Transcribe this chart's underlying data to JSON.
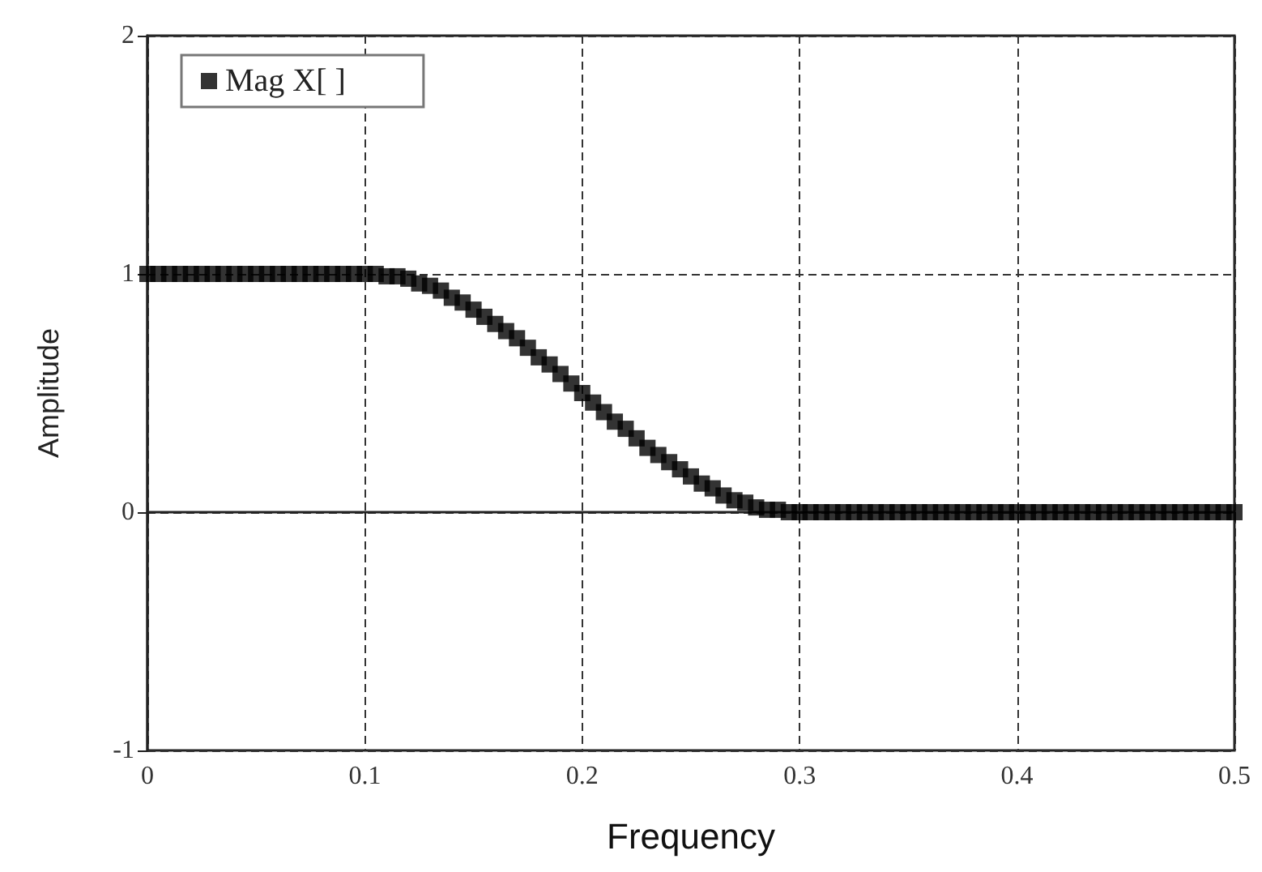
{
  "chart_data": {
    "type": "scatter",
    "xlabel": "Frequency",
    "ylabel": "Amplitude",
    "xlim": [
      0,
      0.5
    ],
    "xticks": [
      0,
      0.1,
      0.2,
      0.3,
      0.4,
      0.5
    ],
    "ylim": [
      -1,
      2
    ],
    "yticks": [
      -1,
      0,
      1,
      2
    ],
    "grid": true,
    "legend": "top left",
    "marker": "square",
    "x": [
      0,
      0.005,
      0.01,
      0.015,
      0.02,
      0.025,
      0.03,
      0.035,
      0.04,
      0.045,
      0.05,
      0.055,
      0.06,
      0.065,
      0.07,
      0.075,
      0.08,
      0.085,
      0.09,
      0.095,
      0.1,
      0.105,
      0.11,
      0.115,
      0.12,
      0.125,
      0.13,
      0.135,
      0.14,
      0.145,
      0.15,
      0.155,
      0.16,
      0.165,
      0.17,
      0.175,
      0.18,
      0.185,
      0.19,
      0.195,
      0.2,
      0.205,
      0.21,
      0.215,
      0.22,
      0.225,
      0.23,
      0.235,
      0.24,
      0.245,
      0.25,
      0.255,
      0.26,
      0.265,
      0.27,
      0.275,
      0.28,
      0.285,
      0.29,
      0.295,
      0.3,
      0.305,
      0.31,
      0.315,
      0.32,
      0.325,
      0.33,
      0.335,
      0.34,
      0.345,
      0.35,
      0.355,
      0.36,
      0.365,
      0.37,
      0.375,
      0.38,
      0.385,
      0.39,
      0.395,
      0.4,
      0.405,
      0.41,
      0.415,
      0.42,
      0.425,
      0.43,
      0.435,
      0.44,
      0.445,
      0.45,
      0.455,
      0.46,
      0.465,
      0.47,
      0.475,
      0.48,
      0.485,
      0.49,
      0.495,
      0.5
    ],
    "series": [
      {
        "name": "Mag X[ ]",
        "color": "#000000",
        "values": [
          1,
          1,
          1,
          1,
          1,
          1,
          1,
          1,
          1,
          1,
          1,
          1,
          1,
          1,
          1,
          1,
          1,
          1,
          1,
          1,
          1,
          1,
          0.99,
          0.99,
          0.98,
          0.96,
          0.95,
          0.93,
          0.9,
          0.88,
          0.85,
          0.82,
          0.79,
          0.76,
          0.73,
          0.69,
          0.65,
          0.62,
          0.58,
          0.54,
          0.5,
          0.46,
          0.42,
          0.38,
          0.35,
          0.31,
          0.27,
          0.24,
          0.21,
          0.18,
          0.15,
          0.12,
          0.1,
          0.07,
          0.05,
          0.04,
          0.02,
          0.01,
          0.01,
          0,
          0,
          0,
          0,
          0,
          0,
          0,
          0,
          0,
          0,
          0,
          0,
          0,
          0,
          0,
          0,
          0,
          0,
          0,
          0,
          0,
          0,
          0,
          0,
          0,
          0,
          0,
          0,
          0,
          0,
          0,
          0,
          0,
          0,
          0,
          0,
          0,
          0,
          0,
          0,
          0,
          0
        ]
      }
    ]
  }
}
